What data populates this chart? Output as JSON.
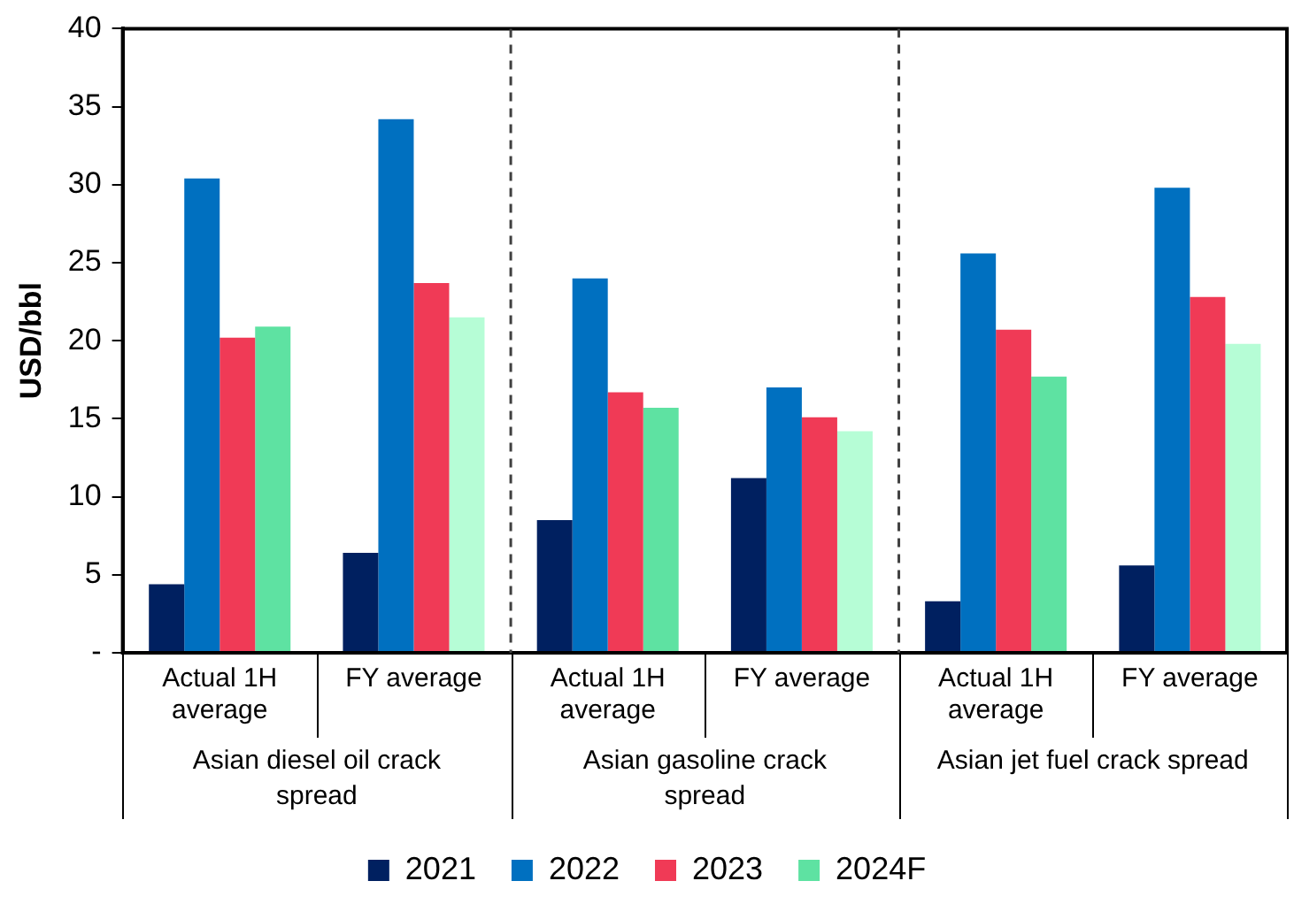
{
  "chart_data": {
    "type": "bar",
    "ylabel": "USD/bbl",
    "categories": [
      "Actual 1H average",
      "FY average",
      "Actual 1H average",
      "FY average",
      "Actual 1H average",
      "FY average"
    ],
    "annotations": [
      "Asian diesel oil crack spread",
      "Asian gasoline crack spread",
      "Asian jet fuel crack spread"
    ],
    "series": [
      {
        "name": "2021",
        "color": "#002060",
        "values": [
          4.4,
          6.4,
          8.5,
          11.2,
          3.3,
          5.6
        ]
      },
      {
        "name": "2022",
        "color": "#0070c0",
        "values": [
          30.4,
          34.2,
          24.0,
          17.0,
          25.6,
          29.8
        ]
      },
      {
        "name": "2023",
        "color": "#f03a56",
        "values": [
          20.2,
          23.7,
          16.7,
          15.1,
          20.7,
          22.8
        ]
      },
      {
        "name": "2024F",
        "color": "#5ee2a2",
        "colors": [
          "#5ee2a2",
          "#b6fdd6",
          "#5ee2a2",
          "#b6fdd6",
          "#5ee2a2",
          "#b6fdd6"
        ],
        "values": [
          20.9,
          21.5,
          15.7,
          14.2,
          17.7,
          19.8
        ]
      }
    ],
    "ylim": [
      0,
      40
    ],
    "yticks": [
      {
        "value": 0,
        "label": "-"
      },
      5,
      10,
      15,
      20,
      25,
      30,
      35,
      40
    ],
    "grid": false,
    "legend": "bottom"
  }
}
